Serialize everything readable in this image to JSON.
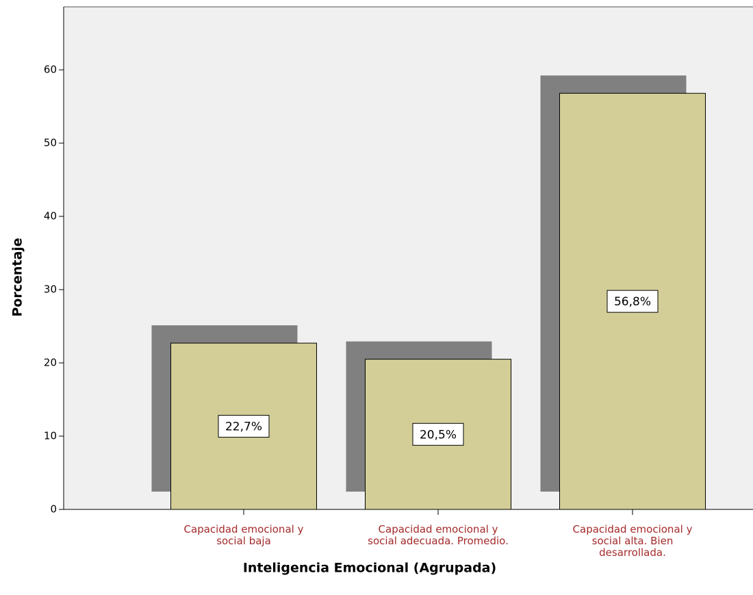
{
  "chart_data": {
    "type": "bar",
    "x_label": "Inteligencia Emocional (Agrupada)",
    "y_label": "Porcentaje",
    "categories": [
      "Capacidad emocional y\nsocial baja",
      "Capacidad emocional y\nsocial adecuada. Promedio.",
      "Capacidad emocional y\nsocial alta. Bien\ndesarrollada."
    ],
    "values": [
      22.7,
      20.5,
      56.8
    ],
    "value_labels": [
      "22,7%",
      "20,5%",
      "56,8%"
    ],
    "color": "#d3ce97",
    "shadow_color": "#808080",
    "category_label_color": "#a52a2a",
    "ylim": [
      0,
      68.6
    ],
    "yticks": [
      0,
      10,
      20,
      30,
      40,
      50,
      60
    ]
  }
}
